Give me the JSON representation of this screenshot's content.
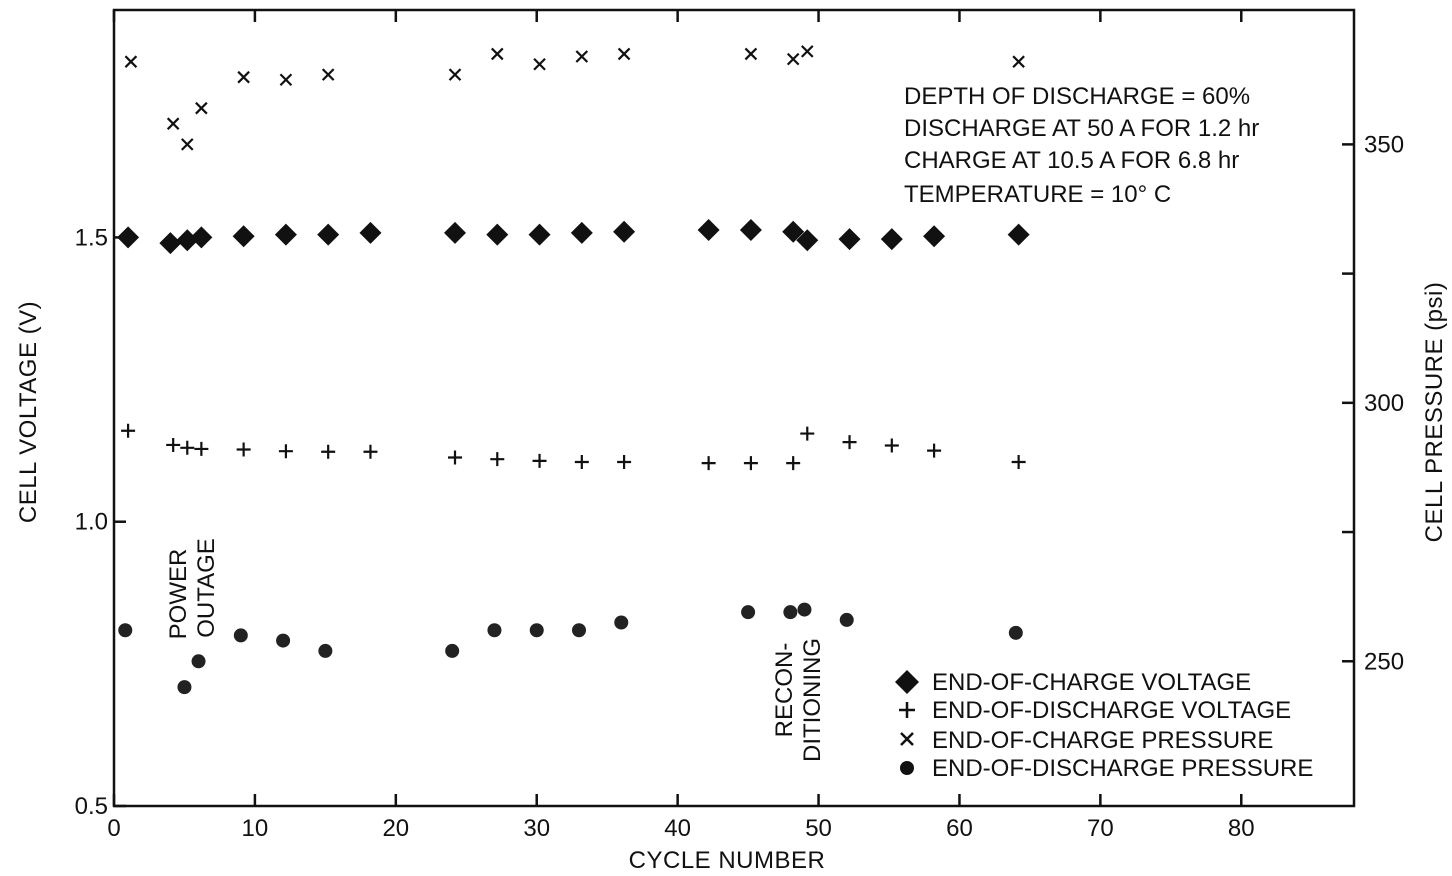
{
  "chart_data": {
    "type": "scatter",
    "title": "",
    "xlabel": "CYCLE NUMBER",
    "ylabel": "CELL VOLTAGE (V)",
    "y2label": "CELL PRESSURE (psi)",
    "xlim": [
      0,
      88
    ],
    "ylim": [
      0.5,
      1.9
    ],
    "y2lim": [
      222,
      376
    ],
    "x_ticks": [
      0,
      10,
      20,
      30,
      40,
      50,
      60,
      70,
      80
    ],
    "y_ticks": [
      0.5,
      1.0,
      1.5
    ],
    "y2_ticks": [
      250,
      300,
      350
    ],
    "grid": false,
    "legend_position": "bottom-right",
    "annotations": [
      "DEPTH OF DISCHARGE = 60%",
      "DISCHARGE AT 50 A FOR 1.2 hr",
      "CHARGE AT 10.5 A FOR 6.8 hr",
      "TEMPERATURE = 10° C"
    ],
    "callouts": [
      {
        "lines": [
          "POWER",
          "OUTAGE"
        ],
        "x": 5.5,
        "y": 0.85
      },
      {
        "lines": [
          "RECON-",
          "DITIONING"
        ],
        "x": 49.3,
        "y": 0.62
      }
    ],
    "series": [
      {
        "name": "END-OF-CHARGE VOLTAGE",
        "axis": "left",
        "marker": "diamond",
        "points": [
          [
            1,
            1.5
          ],
          [
            4,
            1.49
          ],
          [
            5.2,
            1.495
          ],
          [
            6.2,
            1.5
          ],
          [
            9.2,
            1.502
          ],
          [
            12.2,
            1.505
          ],
          [
            15.2,
            1.505
          ],
          [
            18.2,
            1.508
          ],
          [
            24.2,
            1.508
          ],
          [
            27.2,
            1.505
          ],
          [
            30.2,
            1.505
          ],
          [
            33.2,
            1.508
          ],
          [
            36.2,
            1.51
          ],
          [
            42.2,
            1.513
          ],
          [
            45.2,
            1.513
          ],
          [
            48.2,
            1.51
          ],
          [
            49.2,
            1.495
          ],
          [
            52.2,
            1.497
          ],
          [
            55.2,
            1.497
          ],
          [
            58.2,
            1.502
          ],
          [
            64.2,
            1.505
          ]
        ]
      },
      {
        "name": "END-OF-DISCHARGE VOLTAGE",
        "axis": "left",
        "marker": "plus",
        "points": [
          [
            1,
            1.16
          ],
          [
            4.2,
            1.135
          ],
          [
            5.2,
            1.13
          ],
          [
            6.2,
            1.128
          ],
          [
            9.2,
            1.127
          ],
          [
            12.2,
            1.124
          ],
          [
            15.2,
            1.123
          ],
          [
            18.2,
            1.123
          ],
          [
            24.2,
            1.113
          ],
          [
            27.2,
            1.11
          ],
          [
            30.2,
            1.107
          ],
          [
            33.2,
            1.105
          ],
          [
            36.2,
            1.105
          ],
          [
            42.2,
            1.103
          ],
          [
            45.2,
            1.103
          ],
          [
            48.2,
            1.103
          ],
          [
            49.2,
            1.155
          ],
          [
            52.2,
            1.14
          ],
          [
            55.2,
            1.134
          ],
          [
            58.2,
            1.125
          ],
          [
            64.2,
            1.105
          ]
        ]
      },
      {
        "name": "END-OF-CHARGE PRESSURE",
        "axis": "right",
        "marker": "x",
        "points": [
          [
            1.2,
            366
          ],
          [
            4.2,
            354
          ],
          [
            5.2,
            350
          ],
          [
            6.2,
            357
          ],
          [
            9.2,
            363
          ],
          [
            12.2,
            362.5
          ],
          [
            15.2,
            363.5
          ],
          [
            24.2,
            363.5
          ],
          [
            27.2,
            367.5
          ],
          [
            30.2,
            365.5
          ],
          [
            33.2,
            367
          ],
          [
            36.2,
            367.5
          ],
          [
            45.2,
            367.5
          ],
          [
            48.2,
            366.5
          ],
          [
            49.2,
            368
          ],
          [
            64.2,
            366
          ]
        ]
      },
      {
        "name": "END-OF-DISCHARGE PRESSURE",
        "axis": "right",
        "marker": "circle",
        "points": [
          [
            0.8,
            256
          ],
          [
            5,
            245
          ],
          [
            6,
            250
          ],
          [
            9,
            255
          ],
          [
            12,
            254
          ],
          [
            15,
            252
          ],
          [
            24,
            252
          ],
          [
            27,
            256
          ],
          [
            30,
            256
          ],
          [
            33,
            256
          ],
          [
            36,
            257.5
          ],
          [
            45,
            259.5
          ],
          [
            48,
            259.5
          ],
          [
            49,
            260
          ],
          [
            52,
            258
          ],
          [
            64,
            255.5
          ]
        ]
      }
    ]
  }
}
